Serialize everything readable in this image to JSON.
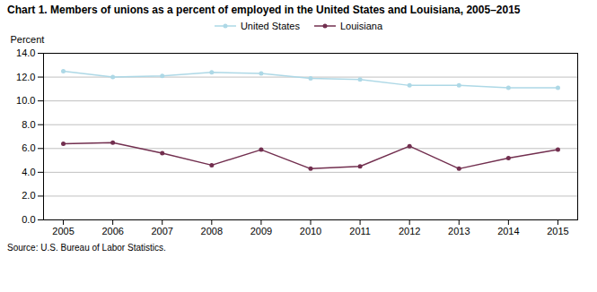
{
  "chart_data": {
    "type": "line",
    "title": "Chart 1.  Members of unions as a percent of employed in the United States and  Louisiana, 2005–2015",
    "y_label": "Percent",
    "source": "Source: U.S. Bureau of Labor Statistics.",
    "x": [
      2005,
      2006,
      2007,
      2008,
      2009,
      2010,
      2011,
      2012,
      2013,
      2014,
      2015
    ],
    "series": [
      {
        "name": "United States",
        "color": "#add8e6",
        "marker": "circle",
        "values": [
          12.5,
          12.0,
          12.1,
          12.4,
          12.3,
          11.9,
          11.8,
          11.3,
          11.3,
          11.1,
          11.1
        ]
      },
      {
        "name": "Louisiana",
        "color": "#722F4F",
        "marker": "circle",
        "values": [
          6.4,
          6.5,
          5.6,
          4.6,
          5.9,
          4.3,
          4.5,
          6.2,
          4.3,
          5.2,
          5.9
        ]
      }
    ],
    "xlim": [
      2004.6,
      2015.4
    ],
    "xticks": [
      2005,
      2006,
      2007,
      2008,
      2009,
      2010,
      2011,
      2012,
      2013,
      2014,
      2015
    ],
    "ylim": [
      0.0,
      14.0
    ],
    "yticks": [
      {
        "value": 0,
        "label": "0.0"
      },
      {
        "value": 2,
        "label": "2.0"
      },
      {
        "value": 4,
        "label": "4.0"
      },
      {
        "value": 6,
        "label": "6.0"
      },
      {
        "value": 8,
        "label": "8.0"
      },
      {
        "value": 10,
        "label": "10.0"
      },
      {
        "value": 12,
        "label": "12.0"
      },
      {
        "value": 14,
        "label": "14.0"
      }
    ],
    "grid": true,
    "legend": "upper center"
  }
}
